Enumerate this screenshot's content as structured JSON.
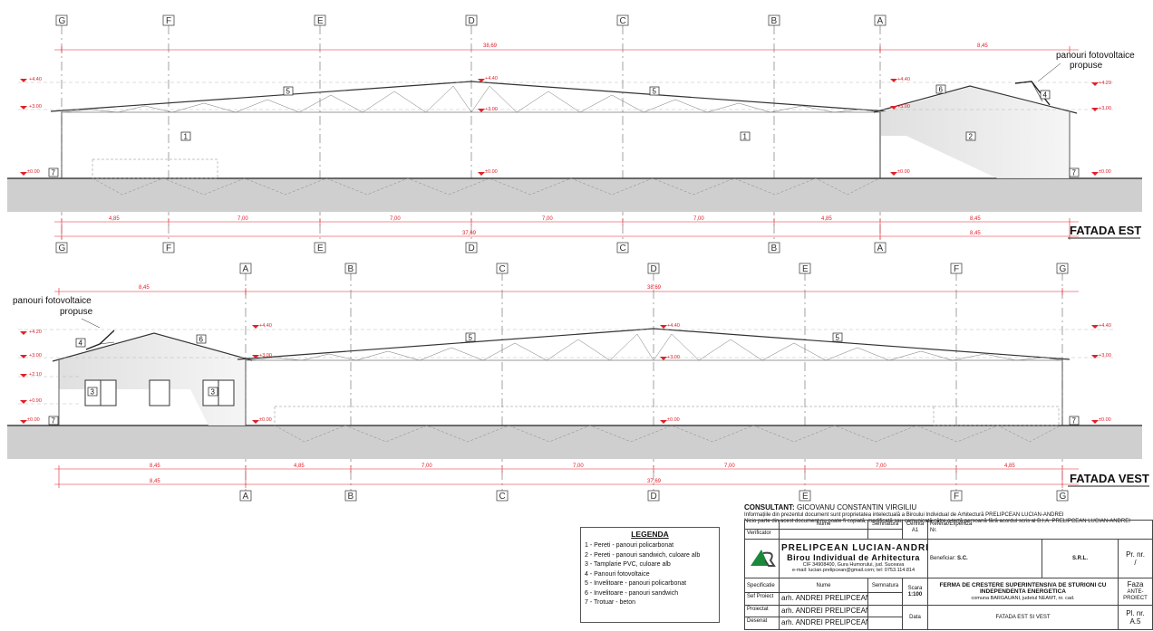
{
  "elevation_est": {
    "title": "FATADA EST",
    "axes": [
      "G",
      "F",
      "E",
      "D",
      "C",
      "B",
      "A"
    ],
    "top_dims": {
      "main": "38,69",
      "annex": "8,45"
    },
    "bottom_dims": [
      "4,85",
      "7,00",
      "7,00",
      "7,00",
      "7,00",
      "4,85",
      "8,45"
    ],
    "bottom_total": "37,69",
    "bottom_annex": "8,45",
    "levels_left": [
      "+4.40",
      "+3.00",
      "±0.00"
    ],
    "levels_mid": [
      "+4.40",
      "+3.00",
      "±0.00"
    ],
    "levels_a": [
      "+4.40",
      "+3.00",
      "±0.00"
    ],
    "levels_right": [
      "+4.20",
      "+3.00",
      "±0.00"
    ],
    "pv_note": [
      "panouri fotovoltaice",
      "propuse"
    ],
    "tags": {
      "t5a": "5",
      "t5b": "5",
      "t1a": "1",
      "t1b": "1",
      "t7a": "7",
      "t7b": "7",
      "t6": "6",
      "t4": "4",
      "t2": "2"
    }
  },
  "elevation_vest": {
    "title": "FATADA VEST",
    "axes": [
      "A",
      "B",
      "C",
      "D",
      "E",
      "F",
      "G"
    ],
    "top_dims": {
      "annex": "8,45",
      "main": "38,69"
    },
    "bottom_dims": [
      "8,45",
      "4,85",
      "7,00",
      "7,00",
      "7,00",
      "7,00",
      "4,85"
    ],
    "bottom_annex": "8,45",
    "bottom_total": "37,69",
    "levels_left": [
      "+4.20",
      "+3.00",
      "+2.10",
      "+0.90",
      "±0.00"
    ],
    "levels_a": [
      "+4.40",
      "+3.00",
      "±0.00"
    ],
    "levels_mid": [
      "+4.40",
      "+3.00",
      "±0.00"
    ],
    "levels_right": [
      "+4.40",
      "+3.00",
      "±0.00"
    ],
    "pv_note": [
      "panouri fotovoltaice",
      "propuse"
    ],
    "tags": {
      "t4": "4",
      "t6": "6",
      "t5a": "5",
      "t5b": "5",
      "t3a": "3",
      "t3b": "3",
      "t7a": "7",
      "t7b": "7"
    }
  },
  "legend": {
    "title": "LEGENDA",
    "items": [
      "1 - Pereti - panouri policarbonat",
      "2 - Pereti - panouri sandwich, culoare alb",
      "3 - Tamplarie PVC, culoare alb",
      "4 - Panouri fotovoltaice",
      "5 - Invelitoare - panouri policarbonat",
      "6 - Invelitoare - panouri sandwich",
      "7 - Trotuar - beton"
    ]
  },
  "consultant": {
    "label": "CONSULTANT:",
    "name": "GICOVANU CONSTANTIN VIRGILIU",
    "note1": "Informațiile din prezentul document sunt proprietatea intelectuală a Biroului Individual de Arhitectură PRELIPCEAN LUCIAN-ANDREI",
    "note2": "Nicio parte din acest document nu poate fi copiată, modificată sau comunicată către o terță persoană fără acordul scris al B.I.A. PRELIPCEAN LUCIAN-ANDREI"
  },
  "titleblock": {
    "h_nume": "Nume",
    "h_semnatura": "Semnatura",
    "h_cerinta": "Cerinta",
    "cerinta_val": "A1",
    "h_referat": "Referat/Expertiza",
    "referat_nr": "Nr.",
    "verificator": "Verificator",
    "firm1": "PRELIPCEAN LUCIAN-ANDREI",
    "firm2": "Birou Individual de Arhitectura",
    "firm_cif": "CIF 34908400, Gura Humorului, jud. Suceava",
    "firm_mail": "e-mail: lucian.prelipcean@gmail.com; tel: 0753.114.814",
    "beneficiar_label": "Beneficiar:",
    "beneficiar_val": "S.C.",
    "srl": "S.R.L.",
    "prnr_label": "Pr. nr.",
    "prnr_val": "/",
    "specificatie": "Specificatie",
    "scara_label": "Scara",
    "scara_val": "1:100",
    "project1": "FERMA DE CRESTERE SUPERINTENSIVA DE STURIONI CU",
    "project2": "INDEPENDENTA ENERGETICA",
    "project3": "comuna BARGAUANI, judetul NEAMT, nr. cad.",
    "faza_label": "Faza",
    "faza_val1": "ANTE-",
    "faza_val2": "PROIECT",
    "sef_label": "Sef Proiect",
    "proiectat_label": "Proiectat",
    "desenat_label": "Desenat",
    "person": "arh. ANDREI PRELIPCEAN",
    "data_label": "Data",
    "drawing_title": "FATADA EST SI VEST",
    "plnr_label": "Pl. nr.",
    "plnr_val": "A.5"
  },
  "colors": {
    "dimension": "#e0202a",
    "ground": "#cfcfcf",
    "line": "#222222"
  }
}
